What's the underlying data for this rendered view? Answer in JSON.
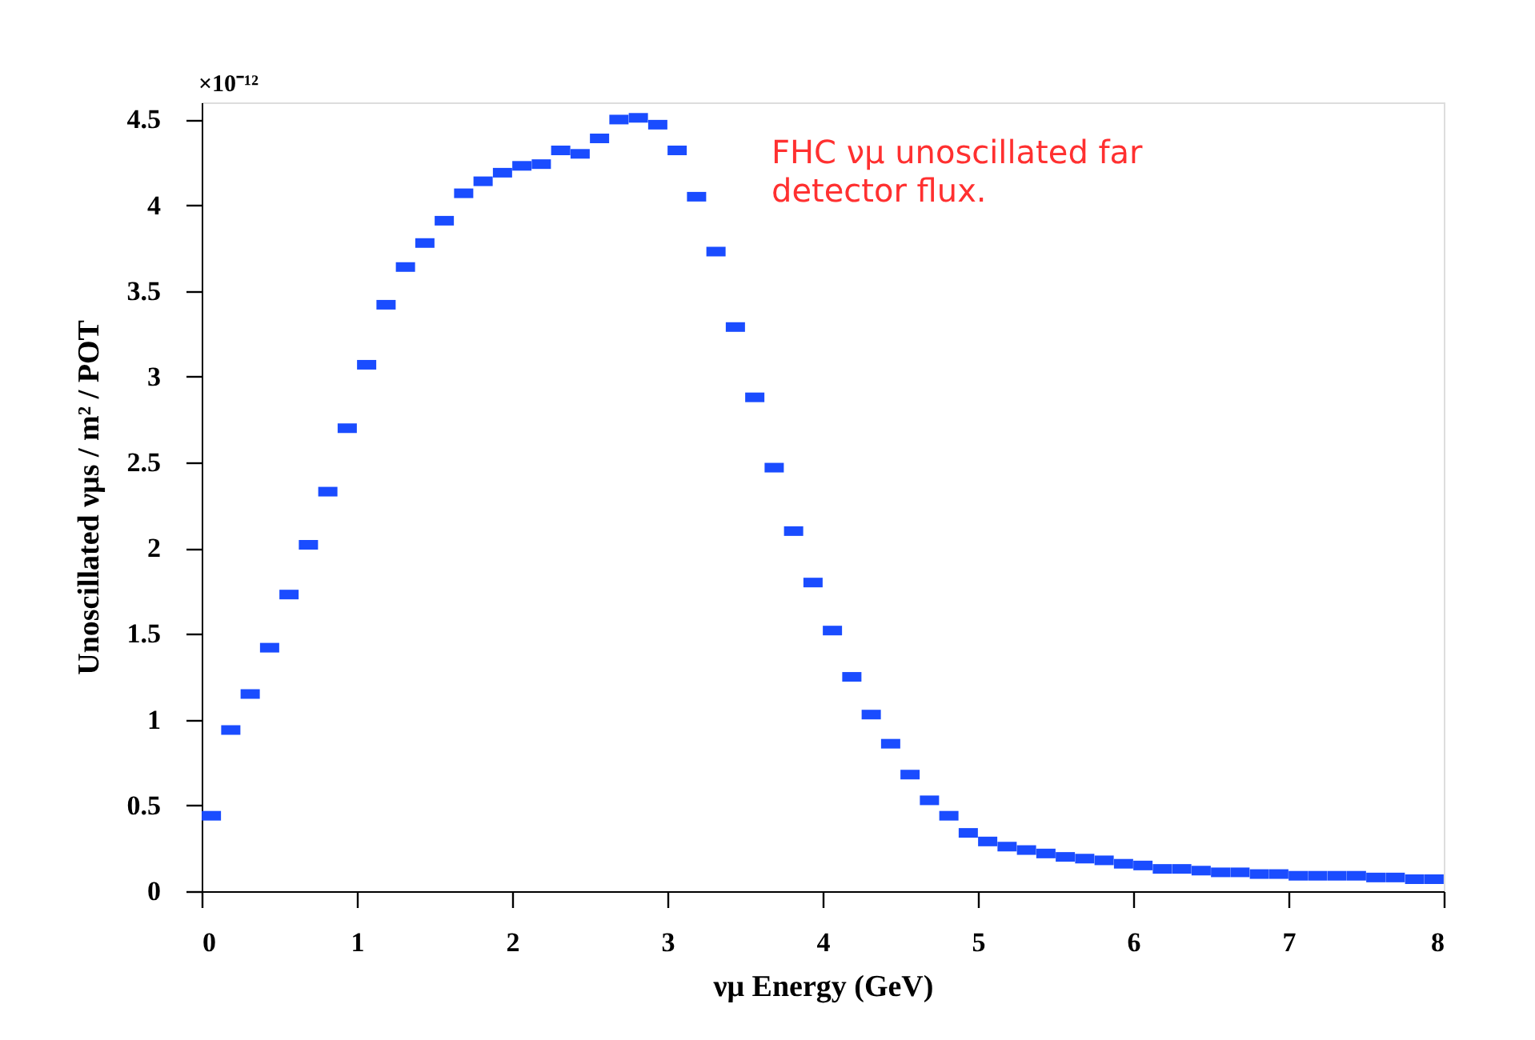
{
  "chart_data": {
    "type": "scatter",
    "xlabel": "νμ Energy (GeV)",
    "ylabel": "Unoscillated νμs / m² / POT",
    "annotations": [
      "×10⁻¹²",
      "FHC νμ unoscillated far detector flux."
    ],
    "x": [
      0.0625,
      0.1875,
      0.3125,
      0.4375,
      0.5625,
      0.6875,
      0.8125,
      0.9375,
      1.0625,
      1.1875,
      1.3125,
      1.4375,
      1.5625,
      1.6875,
      1.8125,
      1.9375,
      2.0625,
      2.1875,
      2.3125,
      2.4375,
      2.5625,
      2.6875,
      2.8125,
      2.9375,
      3.0625,
      3.1875,
      3.3125,
      3.4375,
      3.5625,
      3.6875,
      3.8125,
      3.9375,
      4.0625,
      4.1875,
      4.3125,
      4.4375,
      4.5625,
      4.6875,
      4.8125,
      4.9375,
      5.0625,
      5.1875,
      5.3125,
      5.4375,
      5.5625,
      5.6875,
      5.8125,
      5.9375,
      6.0625,
      6.1875,
      6.3125,
      6.4375,
      6.5625,
      6.6875,
      6.8125,
      6.9375,
      7.0625,
      7.1875,
      7.3125,
      7.4375,
      7.5625,
      7.6875,
      7.8125,
      7.9375
    ],
    "values": [
      0.44,
      0.94,
      1.15,
      1.42,
      1.73,
      2.02,
      2.33,
      2.7,
      3.07,
      3.42,
      3.64,
      3.78,
      3.91,
      4.07,
      4.14,
      4.19,
      4.23,
      4.24,
      4.32,
      4.3,
      4.39,
      4.5,
      4.51,
      4.47,
      4.32,
      4.05,
      3.73,
      3.29,
      2.88,
      2.47,
      2.1,
      1.8,
      1.52,
      1.25,
      1.03,
      0.86,
      0.68,
      0.53,
      0.44,
      0.34,
      0.29,
      0.26,
      0.24,
      0.22,
      0.2,
      0.19,
      0.18,
      0.16,
      0.15,
      0.13,
      0.13,
      0.12,
      0.11,
      0.11,
      0.1,
      0.1,
      0.09,
      0.09,
      0.09,
      0.09,
      0.08,
      0.08,
      0.07,
      0.07
    ],
    "color": "#1a4cff",
    "marker": "square",
    "xlim": [
      0,
      8
    ],
    "xticks": [
      0,
      1,
      2,
      3,
      4,
      5,
      6,
      7,
      8
    ],
    "ylim": [
      0,
      4.6
    ],
    "yticks": [
      0,
      0.5,
      1,
      1.5,
      2,
      2.5,
      3,
      3.5,
      4,
      4.5
    ],
    "grid": false,
    "legend": false
  }
}
